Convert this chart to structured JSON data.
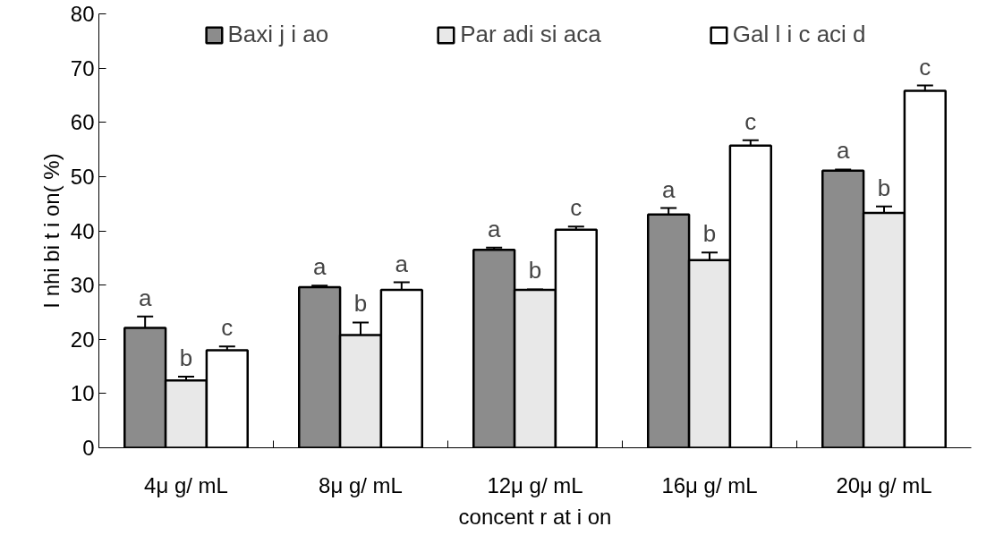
{
  "chart_data": {
    "type": "bar",
    "xlabel": "concent r at i on",
    "ylabel": "I nhi bi t i on( %)",
    "categories": [
      "4μ g/ mL",
      "8μ g/ mL",
      "12μ g/ mL",
      "16μ g/ mL",
      "20μ g/ mL"
    ],
    "series": [
      {
        "name": "Baxi j i ao",
        "color": "#8c8c8c",
        "values": [
          22.1,
          29.6,
          36.5,
          43.0,
          51.1
        ],
        "errors": [
          2.1,
          0.3,
          0.4,
          1.2,
          0.2
        ]
      },
      {
        "name": "Par adi si aca",
        "color": "#e8e8e8",
        "values": [
          12.4,
          20.8,
          29.1,
          34.6,
          43.3
        ],
        "errors": [
          0.7,
          2.3,
          0.1,
          1.4,
          1.2
        ]
      },
      {
        "name": "Gal l i c aci d",
        "color": "#ffffff",
        "values": [
          18.0,
          29.1,
          40.2,
          55.7,
          65.8
        ],
        "errors": [
          0.7,
          1.4,
          0.6,
          1.0,
          1.0
        ]
      }
    ],
    "ylim": [
      0,
      80
    ],
    "yticks": [
      0,
      10,
      20,
      30,
      40,
      50,
      60,
      70,
      80
    ],
    "grid": false,
    "legend": "top",
    "annotations": [
      "a",
      "b",
      "c",
      "a",
      "b",
      "a",
      "a",
      "b",
      "c",
      "a",
      "b",
      "c",
      "a",
      "b",
      "c"
    ]
  }
}
